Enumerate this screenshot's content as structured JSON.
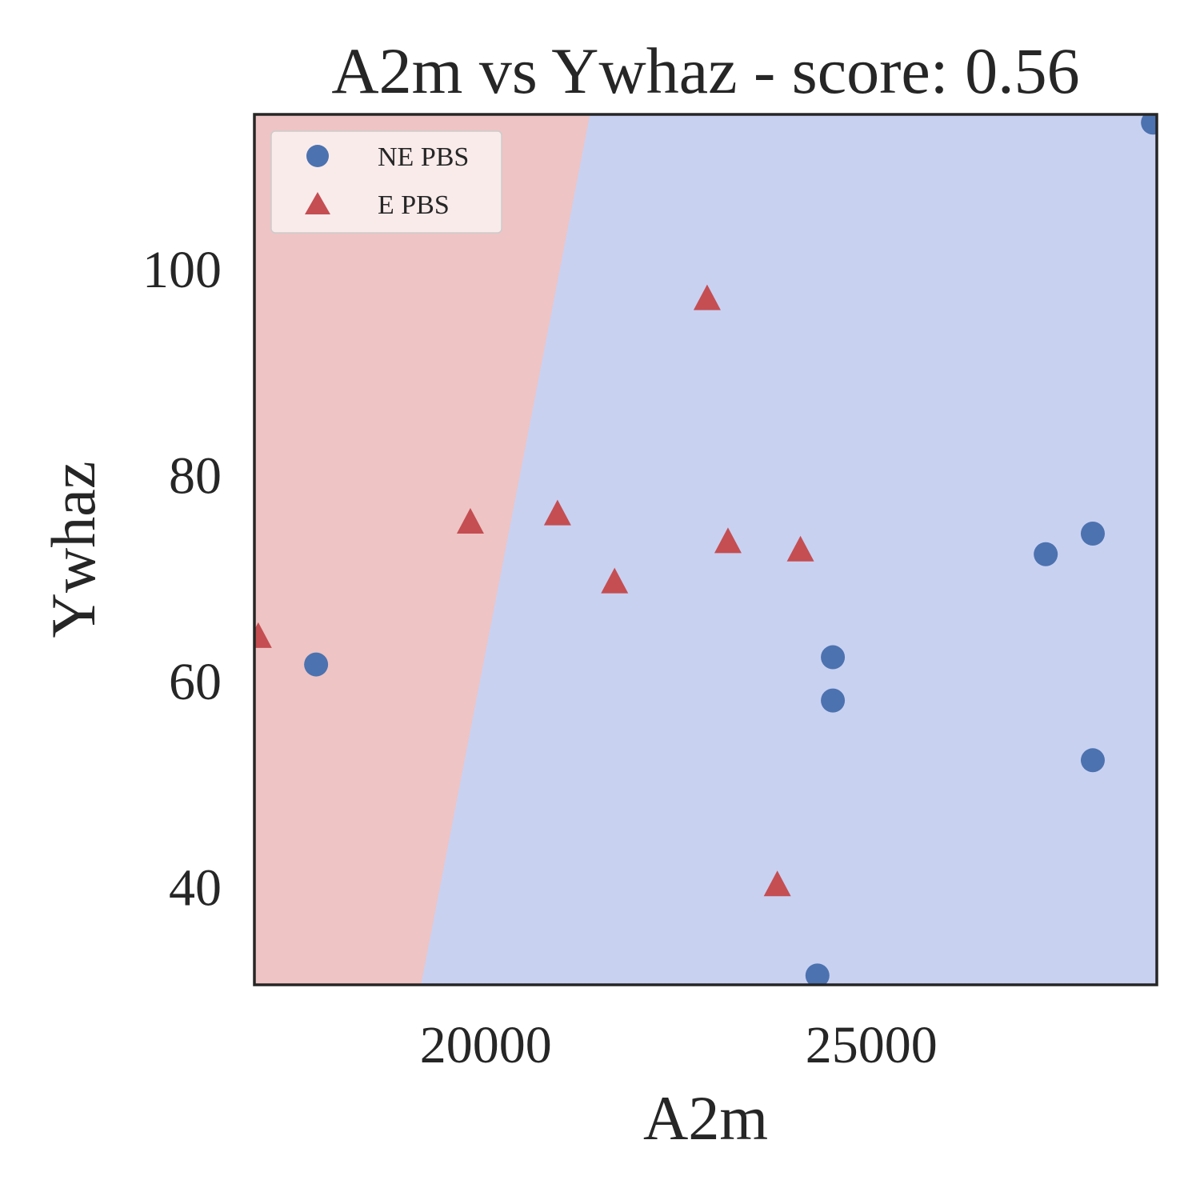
{
  "chart_data": {
    "type": "scatter",
    "title": "A2m vs Ywhaz - score: 0.56",
    "xlabel": "A2m",
    "ylabel": "Ywhaz",
    "xlim": [
      17000,
      28700
    ],
    "ylim": [
      30.5,
      115
    ],
    "xticks": [
      20000,
      25000
    ],
    "yticks": [
      40,
      60,
      80,
      100
    ],
    "grid": false,
    "legend_position": "top-left",
    "colors": {
      "ne_pbs": "#4c72b0",
      "e_pbs": "#c44e52",
      "region_e": "#eec4c4",
      "region_ne": "#c9d1f1",
      "axes_edge": "#262626"
    },
    "decision_boundary": [
      {
        "x": 19160,
        "y": 30.5
      },
      {
        "x": 21350,
        "y": 115
      }
    ],
    "series": [
      {
        "name": "NE PBS",
        "marker": "circle",
        "points": [
          {
            "x": 17800,
            "y": 61.6
          },
          {
            "x": 24500,
            "y": 62.3
          },
          {
            "x": 24500,
            "y": 58.1
          },
          {
            "x": 24300,
            "y": 31.4
          },
          {
            "x": 27260,
            "y": 72.3
          },
          {
            "x": 27870,
            "y": 74.3
          },
          {
            "x": 27870,
            "y": 52.3
          },
          {
            "x": 28650,
            "y": 114.2
          }
        ]
      },
      {
        "name": "E PBS",
        "marker": "triangle",
        "points": [
          {
            "x": 17050,
            "y": 64.2
          },
          {
            "x": 19800,
            "y": 75.3
          },
          {
            "x": 20930,
            "y": 76.1
          },
          {
            "x": 21670,
            "y": 69.5
          },
          {
            "x": 22870,
            "y": 97.0
          },
          {
            "x": 23140,
            "y": 73.4
          },
          {
            "x": 24080,
            "y": 72.6
          },
          {
            "x": 23780,
            "y": 40.1
          }
        ]
      }
    ]
  }
}
